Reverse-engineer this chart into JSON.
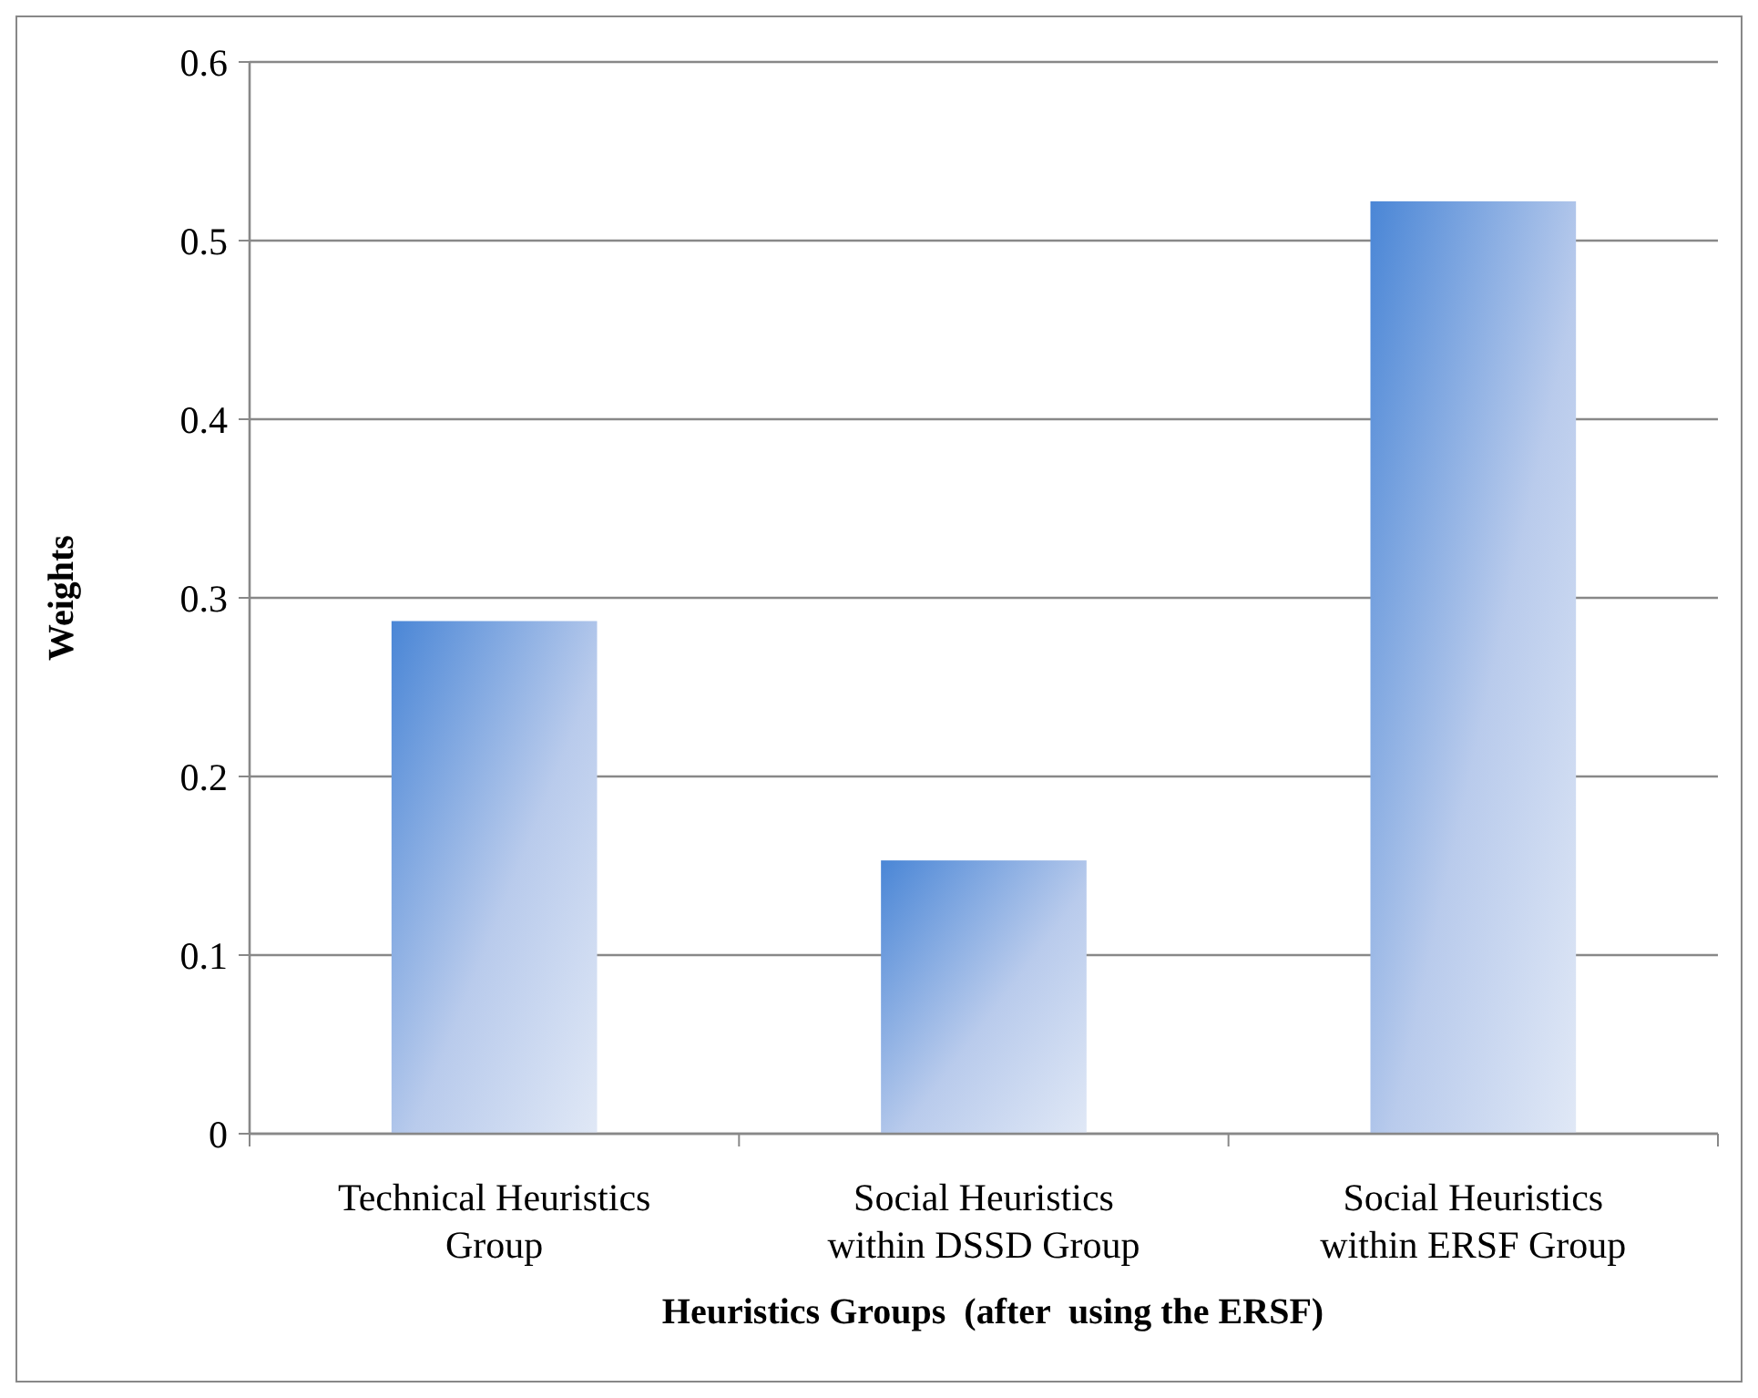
{
  "chart_data": {
    "type": "bar",
    "xlabel": "Heuristics Groups  (after  using the ERSF)",
    "ylabel": "Weights",
    "categories": [
      "Technical Heuristics Group",
      "Social Heuristics within DSSD Group",
      "Social Heuristics within ERSF Group"
    ],
    "values": [
      0.287,
      0.153,
      0.522
    ],
    "color": "#4a86d6",
    "ylim": [
      0,
      0.6
    ],
    "yticks": [
      0,
      0.1,
      0.2,
      0.3,
      0.4,
      0.5,
      0.6
    ],
    "grid": "y"
  }
}
